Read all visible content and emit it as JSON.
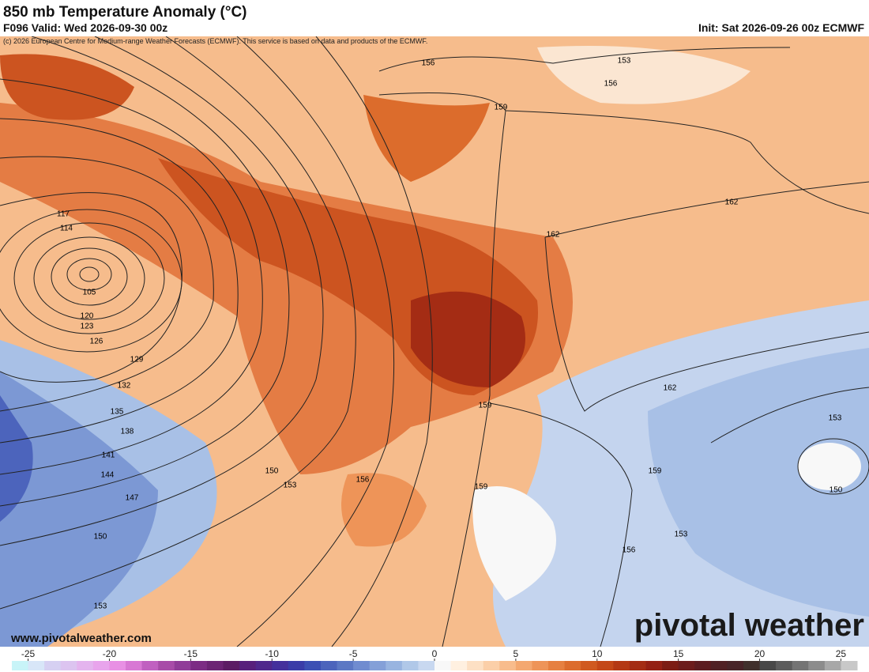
{
  "header": {
    "title": "850 mb Temperature Anomaly (°C)",
    "valid": "F096 Valid: Wed 2026-09-30 00z",
    "init": "Init: Sat 2026-09-26 00z ECMWF",
    "credit": "(c) 2026 European Centre for Medium-range Weather Forecasts (ECMWF). This service is based on data and products of the ECMWF."
  },
  "map": {
    "contour_labels": [
      "156",
      "153",
      "156",
      "159",
      "162",
      "162",
      "117",
      "114",
      "105",
      "120",
      "123",
      "126",
      "129",
      "132",
      "135",
      "138",
      "141",
      "144",
      "147",
      "150",
      "153",
      "150",
      "153",
      "156",
      "159",
      "159",
      "162",
      "153",
      "159",
      "150",
      "153",
      "156"
    ]
  },
  "footer": {
    "website": "www.pivotalweather.com",
    "logo": "pivotal weather"
  },
  "colorbar": {
    "lim": [
      -26,
      26
    ],
    "ticks": [
      -25,
      -20,
      -15,
      -10,
      -5,
      0,
      5,
      10,
      15,
      20,
      25
    ],
    "colors": [
      "#c8f4f8",
      "#d8e6f8",
      "#d6d0f2",
      "#dcc4f0",
      "#e4b4ee",
      "#e8a4ec",
      "#e890e4",
      "#d878d4",
      "#c060c0",
      "#a84ca8",
      "#903c98",
      "#7c2c84",
      "#6c2474",
      "#5c1c64",
      "#58207c",
      "#50288c",
      "#44309c",
      "#3a3ca8",
      "#3c50b4",
      "#4c64bc",
      "#5c78c4",
      "#708cd0",
      "#84a0d8",
      "#98b4e0",
      "#b0c8e8",
      "#c8d8f0",
      "#f8f8f8",
      "#fff0e0",
      "#fde0c4",
      "#fbcfa8",
      "#f8bc8c",
      "#f4a870",
      "#ee9458",
      "#e68040",
      "#dc6c2c",
      "#d05a20",
      "#c44818",
      "#b43814",
      "#a42c14",
      "#942014",
      "#7c1c14",
      "#6c1c1c",
      "#5c1c20",
      "#502024",
      "#482428",
      "#40302c",
      "#484848",
      "#5c5c5c",
      "#747474",
      "#8c8c8c",
      "#a8a8a8",
      "#c8c8c8"
    ]
  }
}
